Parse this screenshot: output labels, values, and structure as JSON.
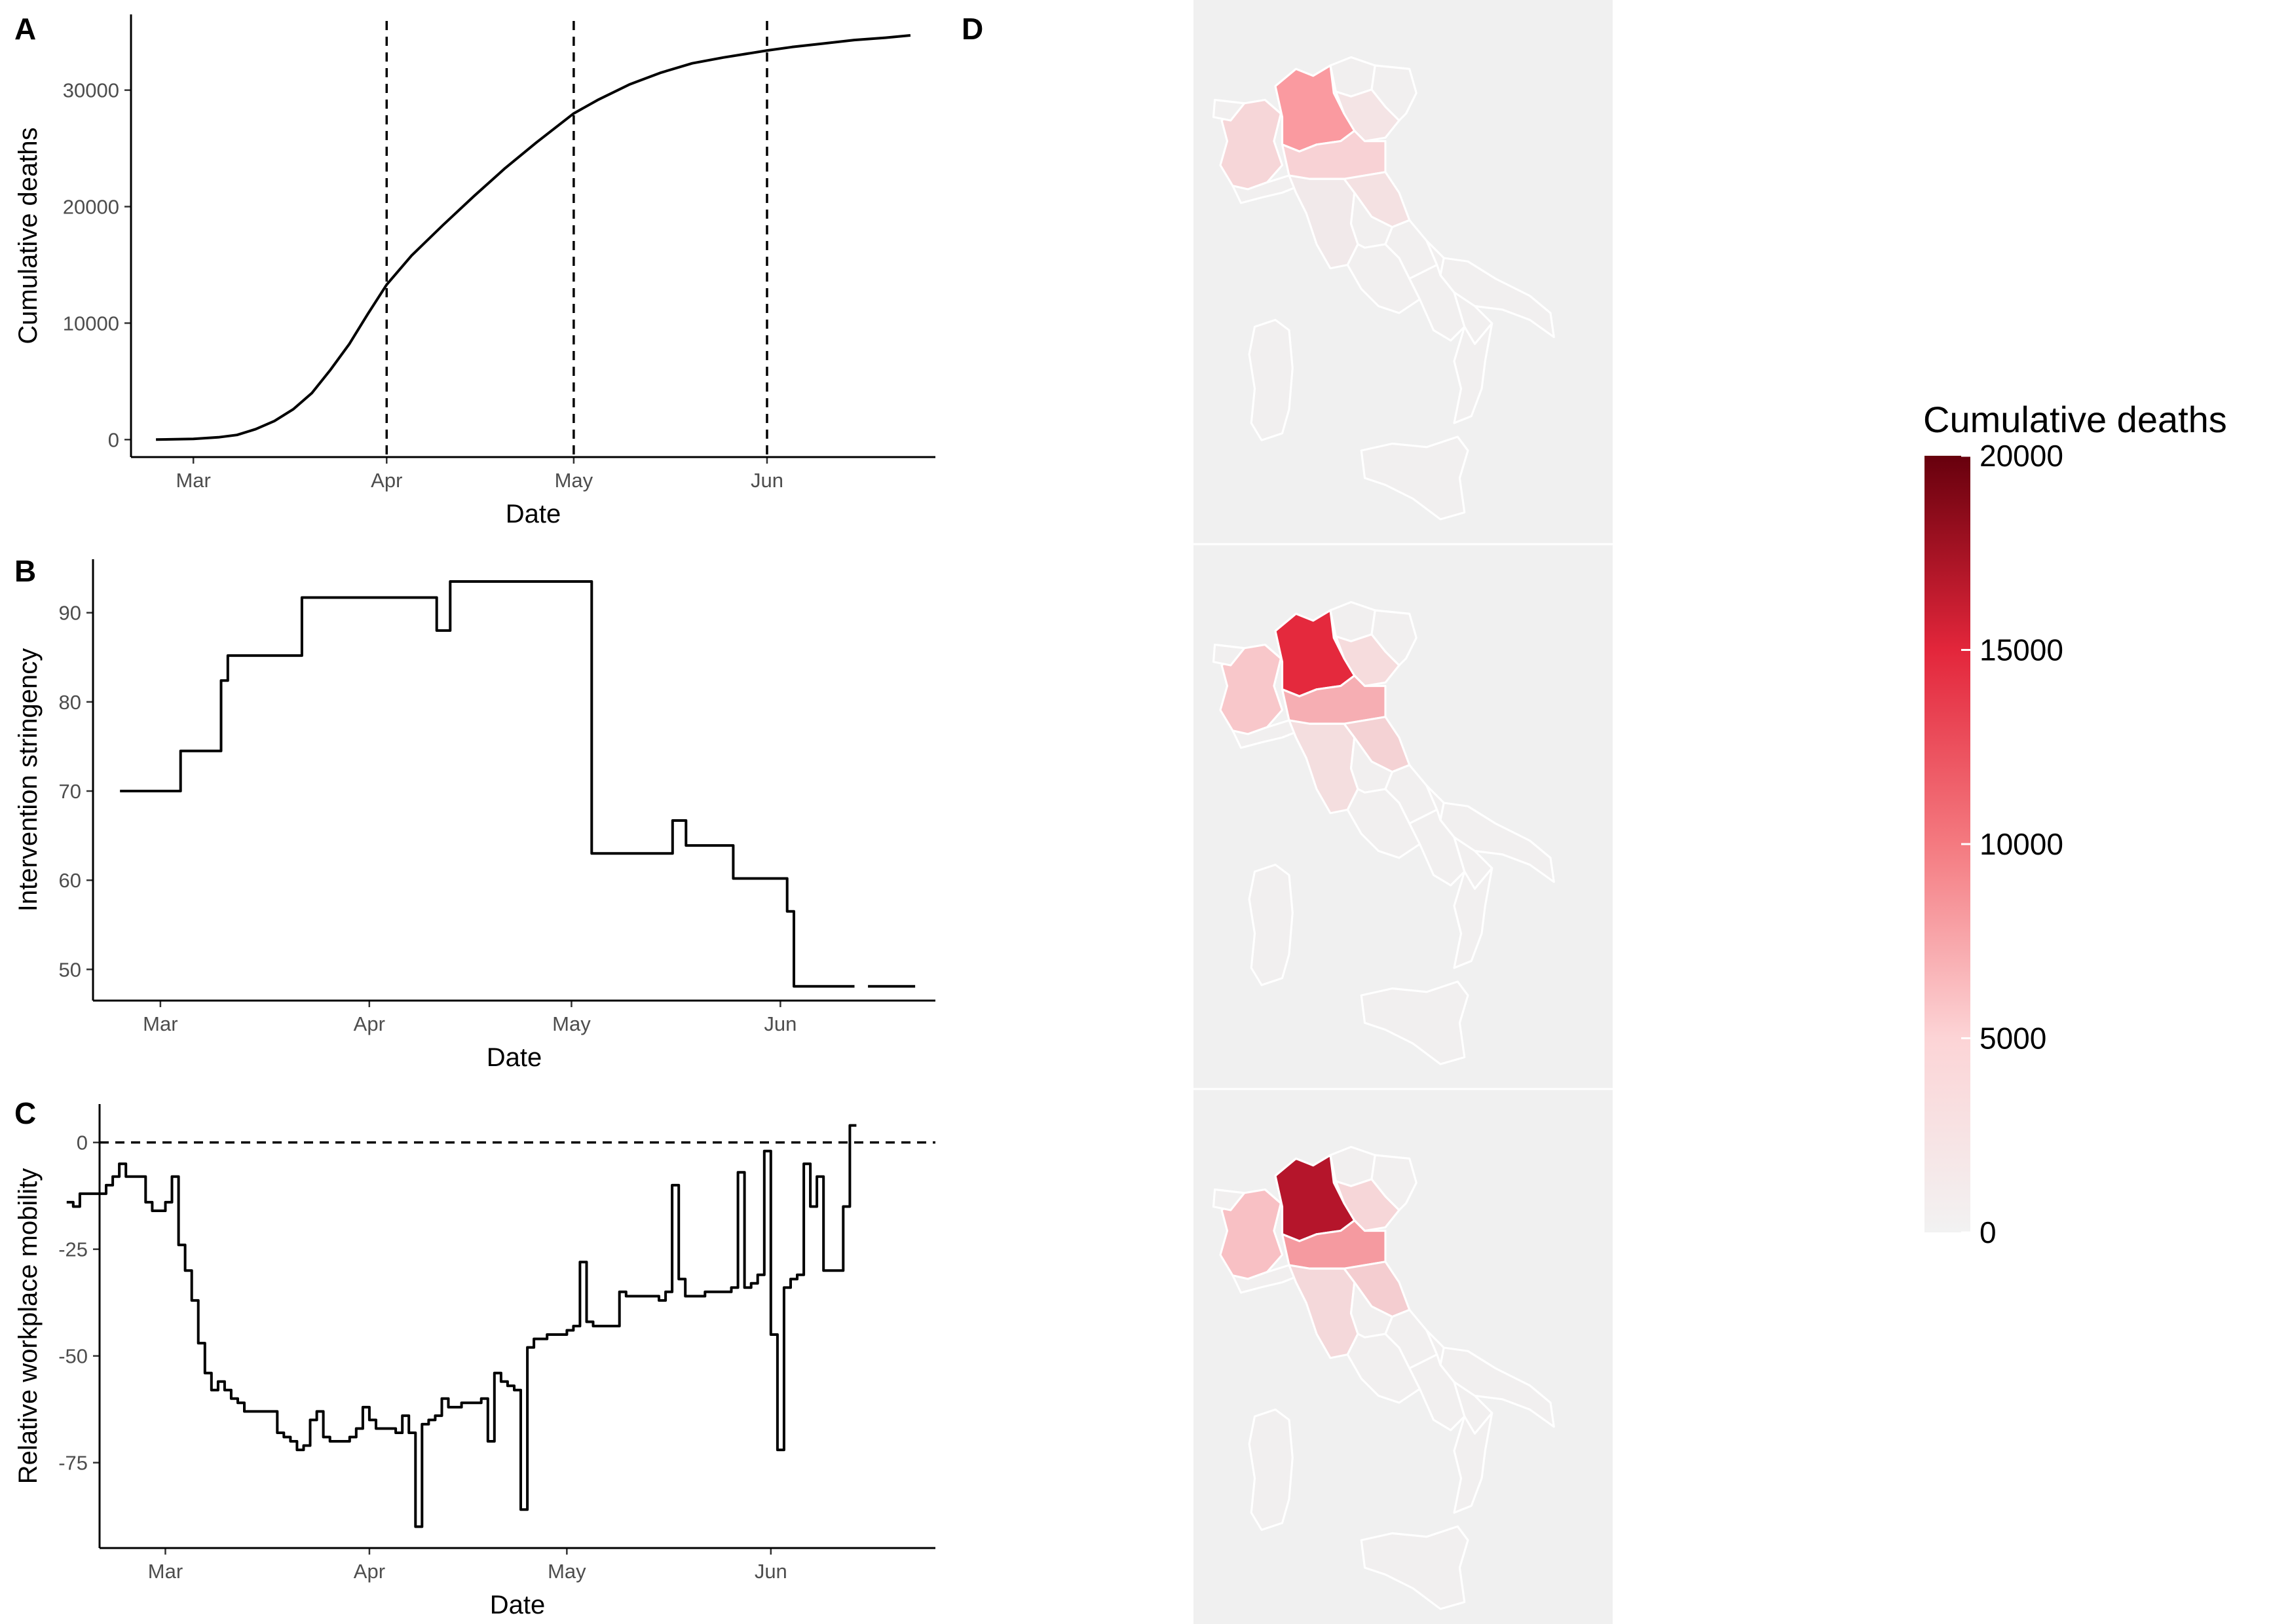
{
  "figure": {
    "legend": {
      "title": "Cumulative deaths",
      "ticks": [
        0,
        5000,
        10000,
        15000,
        20000
      ],
      "limits": [
        0,
        20000
      ],
      "colors": [
        "#f2f2f2",
        "#fcd4d6",
        "#f47a80",
        "#e3263b",
        "#67000d"
      ]
    },
    "map_colors": {
      "background": "#f0f0f0",
      "border": "#ffffff",
      "base_region": "#f1f0f0"
    }
  },
  "chart_data": [
    {
      "panel": "A",
      "type": "line",
      "xlabel": "Date",
      "ylabel": "Cumulative deaths",
      "x_ticks": [
        "Mar",
        "Apr",
        "May",
        "Jun"
      ],
      "y_ticks": [
        0,
        10000,
        20000,
        30000
      ],
      "xlim": [
        "2020-02-20",
        "2020-06-28"
      ],
      "ylim": [
        -1500,
        36500
      ],
      "vlines": [
        "2020-04-01",
        "2020-05-01",
        "2020-06-01"
      ],
      "x": [
        "2020-02-24",
        "2020-03-01",
        "2020-03-05",
        "2020-03-08",
        "2020-03-11",
        "2020-03-14",
        "2020-03-17",
        "2020-03-20",
        "2020-03-23",
        "2020-03-26",
        "2020-03-29",
        "2020-04-01",
        "2020-04-05",
        "2020-04-10",
        "2020-04-15",
        "2020-04-20",
        "2020-04-25",
        "2020-05-01",
        "2020-05-05",
        "2020-05-10",
        "2020-05-15",
        "2020-05-20",
        "2020-05-25",
        "2020-06-01",
        "2020-06-05",
        "2020-06-10",
        "2020-06-15",
        "2020-06-20",
        "2020-06-24"
      ],
      "y": [
        0,
        60,
        200,
        400,
        900,
        1600,
        2600,
        4000,
        6000,
        8200,
        10800,
        13300,
        15800,
        18400,
        20900,
        23300,
        25500,
        28000,
        29200,
        30500,
        31500,
        32300,
        32800,
        33400,
        33700,
        34000,
        34300,
        34500,
        34700
      ]
    },
    {
      "panel": "B",
      "type": "line",
      "step": true,
      "xlabel": "Date",
      "ylabel": "Intervention stringency",
      "x_ticks": [
        "Mar",
        "Apr",
        "May",
        "Jun"
      ],
      "y_ticks": [
        50,
        60,
        70,
        80,
        90
      ],
      "xlim": [
        "2020-02-20",
        "2020-06-24"
      ],
      "ylim": [
        46.5,
        96
      ],
      "x": [
        "2020-02-24",
        "2020-03-04",
        "2020-03-10",
        "2020-03-11",
        "2020-03-12",
        "2020-03-22",
        "2020-04-11",
        "2020-04-13",
        "2020-05-04",
        "2020-05-16",
        "2020-05-18",
        "2020-05-25",
        "2020-06-02",
        "2020-06-03",
        "2020-06-12",
        "2020-06-14",
        "2020-06-20"
      ],
      "y": [
        70,
        74.5,
        82.4,
        85.2,
        85.2,
        91.7,
        88,
        93.5,
        63,
        66.7,
        63.9,
        60.2,
        56.5,
        48.1,
        null,
        48.1,
        48.1
      ]
    },
    {
      "panel": "C",
      "type": "line",
      "step": true,
      "xlabel": "Date",
      "ylabel": "Relative workplace mobility",
      "x_ticks": [
        "Mar",
        "Apr",
        "May",
        "Jun"
      ],
      "y_ticks": [
        0,
        -25,
        -50,
        -75
      ],
      "y_tick_labels": [
        "0",
        "-25",
        "-50",
        "-75"
      ],
      "xlim": [
        "2020-02-20",
        "2020-06-26"
      ],
      "ylim": [
        -95,
        9
      ],
      "hline": 0,
      "x": [
        "2020-02-15",
        "2020-02-16",
        "2020-02-17",
        "2020-02-21",
        "2020-02-22",
        "2020-02-23",
        "2020-02-24",
        "2020-02-27",
        "2020-02-28",
        "2020-03-01",
        "2020-03-02",
        "2020-03-03",
        "2020-03-04",
        "2020-03-05",
        "2020-03-06",
        "2020-03-07",
        "2020-03-08",
        "2020-03-09",
        "2020-03-10",
        "2020-03-11",
        "2020-03-12",
        "2020-03-13",
        "2020-03-14",
        "2020-03-15",
        "2020-03-16",
        "2020-03-17",
        "2020-03-18",
        "2020-03-19",
        "2020-03-20",
        "2020-03-21",
        "2020-03-22",
        "2020-03-23",
        "2020-03-24",
        "2020-03-25",
        "2020-03-26",
        "2020-03-27",
        "2020-03-28",
        "2020-03-29",
        "2020-03-30",
        "2020-03-31",
        "2020-04-01",
        "2020-04-02",
        "2020-04-03",
        "2020-04-04",
        "2020-04-05",
        "2020-04-06",
        "2020-04-07",
        "2020-04-08",
        "2020-04-09",
        "2020-04-10",
        "2020-04-11",
        "2020-04-12",
        "2020-04-13",
        "2020-04-14",
        "2020-04-15",
        "2020-04-16",
        "2020-04-17",
        "2020-04-18",
        "2020-04-19",
        "2020-04-20",
        "2020-04-21",
        "2020-04-22",
        "2020-04-23",
        "2020-04-24",
        "2020-04-25",
        "2020-04-26",
        "2020-04-27",
        "2020-04-28",
        "2020-04-29",
        "2020-04-30",
        "2020-05-01",
        "2020-05-02",
        "2020-05-03",
        "2020-05-04",
        "2020-05-05",
        "2020-05-06",
        "2020-05-07",
        "2020-05-08",
        "2020-05-09",
        "2020-05-10",
        "2020-05-11",
        "2020-05-12",
        "2020-05-13",
        "2020-05-14",
        "2020-05-15",
        "2020-05-16",
        "2020-05-17",
        "2020-05-18",
        "2020-05-19",
        "2020-05-20",
        "2020-05-21",
        "2020-05-22",
        "2020-05-23",
        "2020-05-24",
        "2020-05-25",
        "2020-05-26",
        "2020-05-27",
        "2020-05-28",
        "2020-05-29",
        "2020-05-30",
        "2020-05-31",
        "2020-06-01",
        "2020-06-02",
        "2020-06-03",
        "2020-06-04",
        "2020-06-05",
        "2020-06-06",
        "2020-06-07",
        "2020-06-08",
        "2020-06-09",
        "2020-06-10",
        "2020-06-11",
        "2020-06-12",
        "2020-06-13"
      ],
      "y": [
        -14,
        -15,
        -12,
        -10,
        -8,
        -5,
        -8,
        -14,
        -16,
        -14,
        -8,
        -24,
        -30,
        -37,
        -47,
        -54,
        -58,
        -56,
        -58,
        -60,
        -61,
        -63,
        -63,
        -63,
        -63,
        -63,
        -68,
        -69,
        -70,
        -72,
        -71,
        -65,
        -63,
        -69,
        -70,
        -70,
        -70,
        -69,
        -67,
        -62,
        -65,
        -67,
        -67,
        -67,
        -68,
        -64,
        -68,
        -90,
        -66,
        -65,
        -64,
        -60,
        -62,
        -62,
        -61,
        -61,
        -61,
        -60,
        -70,
        -54,
        -56,
        -57,
        -58,
        -86,
        -48,
        -46,
        -46,
        -45,
        -45,
        -45,
        -44,
        -43,
        -28,
        -42,
        -43,
        -43,
        -43,
        -43,
        -35,
        -36,
        -36,
        -36,
        -36,
        -36,
        -37,
        -35,
        -10,
        -32,
        -36,
        -36,
        -36,
        -35,
        -35,
        -35,
        -35,
        -34,
        -7,
        -34,
        -33,
        -31,
        -2,
        -45,
        -72,
        -34,
        -32,
        -31,
        -5,
        -15,
        -8,
        -30,
        -30,
        -30,
        -15,
        4
      ]
    }
  ]
}
